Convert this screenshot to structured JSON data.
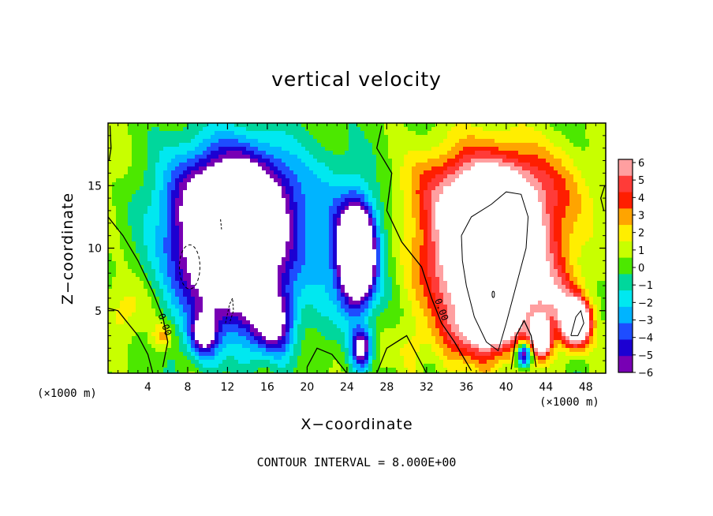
{
  "chart_data": {
    "type": "heatmap",
    "title": "vertical velocity",
    "xlabel": "X−coordinate",
    "ylabel": "Z−coordinate",
    "x_unit_label": "(×1000 m)",
    "xlim": [
      0,
      50
    ],
    "ylim": [
      0,
      20
    ],
    "x_ticks": [
      4,
      8,
      12,
      16,
      20,
      24,
      28,
      32,
      36,
      40,
      44,
      48
    ],
    "x_tick_labels": [
      "4",
      "8",
      "12",
      "16",
      "20",
      "24",
      "28",
      "32",
      "36",
      "40",
      "44",
      "48"
    ],
    "y_ticks": [
      5,
      10,
      15
    ],
    "y_tick_labels": [
      "5",
      "10",
      "15"
    ],
    "colorbar": {
      "levels": [
        6,
        5,
        4,
        3,
        2,
        1,
        0,
        -1,
        -2,
        -3,
        -4,
        -5,
        -6
      ],
      "labels": [
        "6",
        "5",
        "4",
        "3",
        "2",
        "1",
        "0",
        "−1",
        "−2",
        "−3",
        "−4",
        "−5",
        "−6"
      ],
      "colors": [
        "#ff9fa0",
        "#ff3b38",
        "#ff1e00",
        "#ffa400",
        "#ffee00",
        "#c8ff00",
        "#4ce800",
        "#00d79c",
        "#00e8f0",
        "#00b4ff",
        "#1e4dff",
        "#1c00d2",
        "#7800b4"
      ],
      "saturated_high_color": "#ffffff",
      "saturated_low_color": "#ffffff"
    },
    "contour_label": "0.00",
    "contour_interval_text": "CONTOUR INTERVAL = 8.000E+00",
    "features": [
      {
        "kind": "updraft_core",
        "x": 38.5,
        "z": 9.5,
        "peak": 8
      },
      {
        "kind": "downdraft_core",
        "x": 12.0,
        "z": 9.0,
        "peak": -8
      },
      {
        "kind": "downdraft_core",
        "x": 25.0,
        "z": 9.0,
        "peak": -8
      },
      {
        "kind": "updraft_cell",
        "x": 47.0,
        "z": 4.0,
        "peak": 6
      },
      {
        "kind": "updraft_cell",
        "x": 43.5,
        "z": 3.0,
        "peak": 6
      }
    ]
  }
}
